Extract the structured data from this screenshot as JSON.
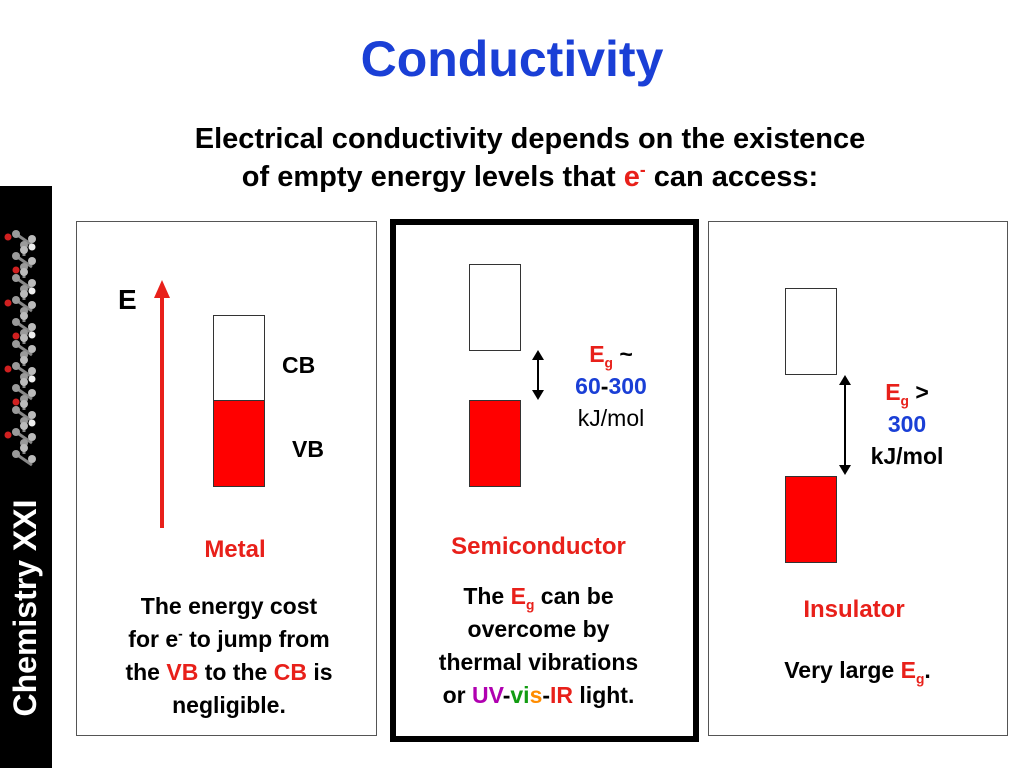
{
  "title": "Conductivity",
  "subtitle": {
    "line1": "Electrical conductivity depends on the existence",
    "line2_pre": "of empty energy levels that ",
    "e": "e",
    "e_sup": "-",
    "line2_post": " can access:"
  },
  "sidebar": {
    "label": "Chemistry XXI"
  },
  "metal": {
    "axis_label": "E",
    "cb_label": "CB",
    "vb_label": "VB",
    "name": "Metal",
    "desc": {
      "l1": "The energy cost",
      "l2_pre": "for e",
      "l2_sup": "-",
      "l2_post": " to jump from",
      "l3_a": "the ",
      "l3_vb": "VB",
      "l3_b": " to the ",
      "l3_cb": "CB",
      "l3_c": " is",
      "l4": "negligible."
    }
  },
  "semiconductor": {
    "eg_E": "E",
    "eg_sub": "g",
    "eg_rel": " ~",
    "range_low": "60",
    "range_dash": "-",
    "range_high": "300",
    "unit": "kJ/mol",
    "name": "Semiconductor",
    "desc": {
      "l1_a": "The ",
      "l1_E": "E",
      "l1_sub": "g",
      "l1_b": " can be",
      "l2": "overcome by",
      "l3": "thermal vibrations",
      "l4_a": "or ",
      "l4_uv": "UV",
      "l4_d1": "-",
      "l4_vi": "vi",
      "l4_s": "s",
      "l4_d2": "-",
      "l4_ir": "IR",
      "l4_b": " light."
    }
  },
  "insulator": {
    "eg_E": "E",
    "eg_sub": "g",
    "eg_rel": " >",
    "value": "300",
    "unit": "kJ/mol",
    "name": "Insulator",
    "desc": {
      "pre": "Very large ",
      "E": "E",
      "sub": "g",
      "post": "."
    }
  },
  "colors": {
    "title": "#1a3fd6",
    "band_filled": "#ff0000",
    "highlight_red": "#e8201a",
    "highlight_blue": "#1a3fd6",
    "uv": "#b000b0",
    "vi": "#129c12",
    "s": "#ff8c00",
    "ir": "#e0601a"
  }
}
